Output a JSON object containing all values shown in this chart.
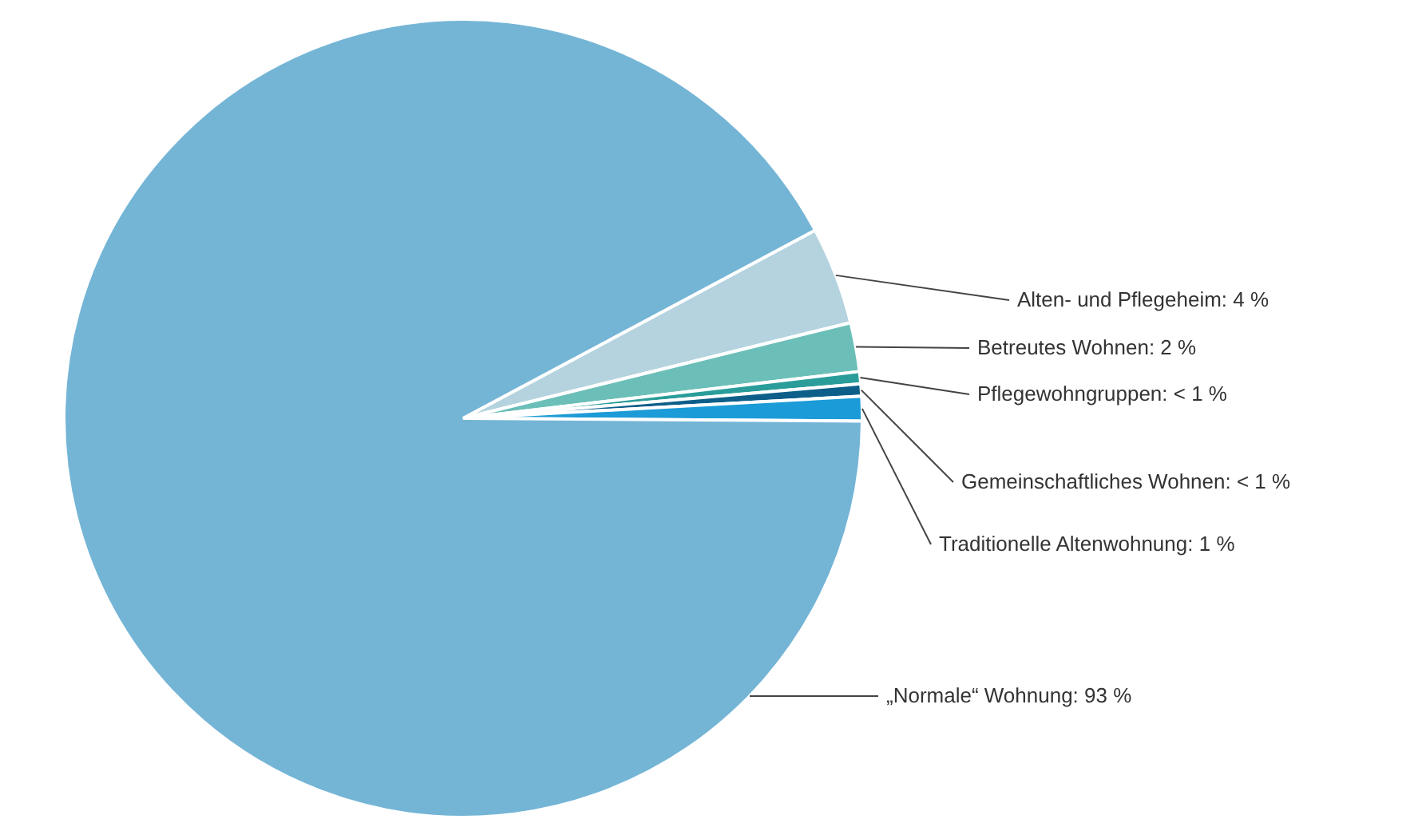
{
  "chart_data": {
    "type": "pie",
    "categories": [
      "Alten- und Pflegeheim",
      "Betreutes Wohnen",
      "Pflegewohngruppen",
      "Gemeinschaftliches Wohnen",
      "Traditionelle Altenwohnung",
      "„Normale“ Wohnung"
    ],
    "values": [
      4,
      2,
      0.5,
      0.5,
      1,
      93
    ],
    "value_labels": [
      "4 %",
      "2 %",
      "< 1 %",
      "< 1 %",
      "1 %",
      "93 %"
    ],
    "colors": [
      "#b4d3df",
      "#6bbfb8",
      "#2a9d9a",
      "#0d5f8a",
      "#1b9bd7",
      "#74b5d6"
    ]
  }
}
